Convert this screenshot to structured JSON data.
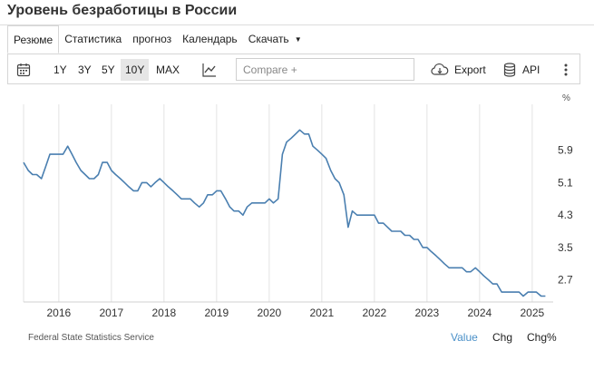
{
  "page_title": "Уровень безработицы в России",
  "tabs": [
    {
      "label": "Резюме",
      "active": true
    },
    {
      "label": "Статистика"
    },
    {
      "label": "прогноз"
    },
    {
      "label": "Календарь"
    },
    {
      "label": "Скачать",
      "dropdown": true
    }
  ],
  "toolbar": {
    "ranges": [
      "1Y",
      "3Y",
      "5Y",
      "10Y",
      "MAX"
    ],
    "active_range": "10Y",
    "compare_placeholder": "Compare +",
    "export_label": "Export",
    "api_label": "API",
    "icons": [
      "calendar-icon",
      "chart-type-icon",
      "cloud-download-icon",
      "database-icon",
      "more-vert-icon"
    ]
  },
  "footer": {
    "source": "Federal State Statistics Service",
    "modes": [
      "Value",
      "Chg",
      "Chg%"
    ],
    "active_mode": "Value"
  },
  "colors": {
    "line": "#4a7fb0",
    "grid": "#e3e3e3",
    "active_mode": "#4a90c8"
  },
  "chart_data": {
    "type": "line",
    "unit": "%",
    "x_ticks": [
      "2016",
      "2017",
      "2018",
      "2019",
      "2020",
      "2021",
      "2022",
      "2023",
      "2024",
      "2025"
    ],
    "y_ticks": [
      "5.9",
      "5.1",
      "4.3",
      "3.5",
      "2.7"
    ],
    "ylim": [
      2.2,
      6.9
    ],
    "xlim": [
      2015.33,
      2025.33
    ],
    "grid": "vertical",
    "series": [
      {
        "x": [
          2015.33,
          2015.42,
          2015.5,
          2015.58,
          2015.67,
          2015.75,
          2015.83,
          2015.92,
          2016.0,
          2016.08,
          2016.17,
          2016.25,
          2016.33,
          2016.42,
          2016.5,
          2016.58,
          2016.67,
          2016.75,
          2016.83,
          2016.92,
          2017.0,
          2017.08,
          2017.17,
          2017.25,
          2017.33,
          2017.42,
          2017.5,
          2017.58,
          2017.67,
          2017.75,
          2017.83,
          2017.92,
          2018.0,
          2018.08,
          2018.17,
          2018.25,
          2018.33,
          2018.42,
          2018.5,
          2018.58,
          2018.67,
          2018.75,
          2018.83,
          2018.92,
          2019.0,
          2019.08,
          2019.17,
          2019.25,
          2019.33,
          2019.42,
          2019.5,
          2019.58,
          2019.67,
          2019.75,
          2019.83,
          2019.92,
          2020.0,
          2020.08,
          2020.17,
          2020.25,
          2020.33,
          2020.42,
          2020.5,
          2020.58,
          2020.67,
          2020.75,
          2020.83,
          2020.92,
          2021.0,
          2021.08,
          2021.17,
          2021.25,
          2021.33,
          2021.42,
          2021.5,
          2021.58,
          2021.67,
          2021.75,
          2021.83,
          2021.92,
          2022.0,
          2022.08,
          2022.17,
          2022.25,
          2022.33,
          2022.42,
          2022.5,
          2022.58,
          2022.67,
          2022.75,
          2022.83,
          2022.92,
          2023.0,
          2023.08,
          2023.17,
          2023.25,
          2023.33,
          2023.42,
          2023.5,
          2023.58,
          2023.67,
          2023.75,
          2023.83,
          2023.92,
          2024.0,
          2024.08,
          2024.17,
          2024.25,
          2024.33,
          2024.42,
          2024.5,
          2024.58,
          2024.67,
          2024.75,
          2024.83,
          2024.92,
          2025.0,
          2025.08,
          2025.17,
          2025.25
        ],
        "y": [
          5.6,
          5.4,
          5.3,
          5.3,
          5.2,
          5.5,
          5.8,
          5.8,
          5.8,
          5.8,
          6.0,
          5.8,
          5.6,
          5.4,
          5.3,
          5.2,
          5.2,
          5.3,
          5.6,
          5.6,
          5.4,
          5.3,
          5.2,
          5.1,
          5.0,
          4.9,
          4.9,
          5.1,
          5.1,
          5.0,
          5.1,
          5.2,
          5.1,
          5.0,
          4.9,
          4.8,
          4.7,
          4.7,
          4.7,
          4.6,
          4.5,
          4.6,
          4.8,
          4.8,
          4.9,
          4.9,
          4.7,
          4.5,
          4.4,
          4.4,
          4.3,
          4.5,
          4.6,
          4.6,
          4.6,
          4.6,
          4.7,
          4.6,
          4.7,
          5.8,
          6.1,
          6.2,
          6.3,
          6.4,
          6.3,
          6.3,
          6.0,
          5.9,
          5.8,
          5.7,
          5.4,
          5.2,
          5.1,
          4.8,
          4.0,
          4.4,
          4.3,
          4.3,
          4.3,
          4.3,
          4.3,
          4.1,
          4.1,
          4.0,
          3.9,
          3.9,
          3.9,
          3.8,
          3.8,
          3.7,
          3.7,
          3.5,
          3.5,
          3.4,
          3.3,
          3.2,
          3.1,
          3.0,
          3.0,
          3.0,
          3.0,
          2.9,
          2.9,
          3.0,
          2.9,
          2.8,
          2.7,
          2.6,
          2.6,
          2.4,
          2.4,
          2.4,
          2.4,
          2.4,
          2.3,
          2.4,
          2.4,
          2.4,
          2.3,
          2.3
        ]
      }
    ]
  }
}
